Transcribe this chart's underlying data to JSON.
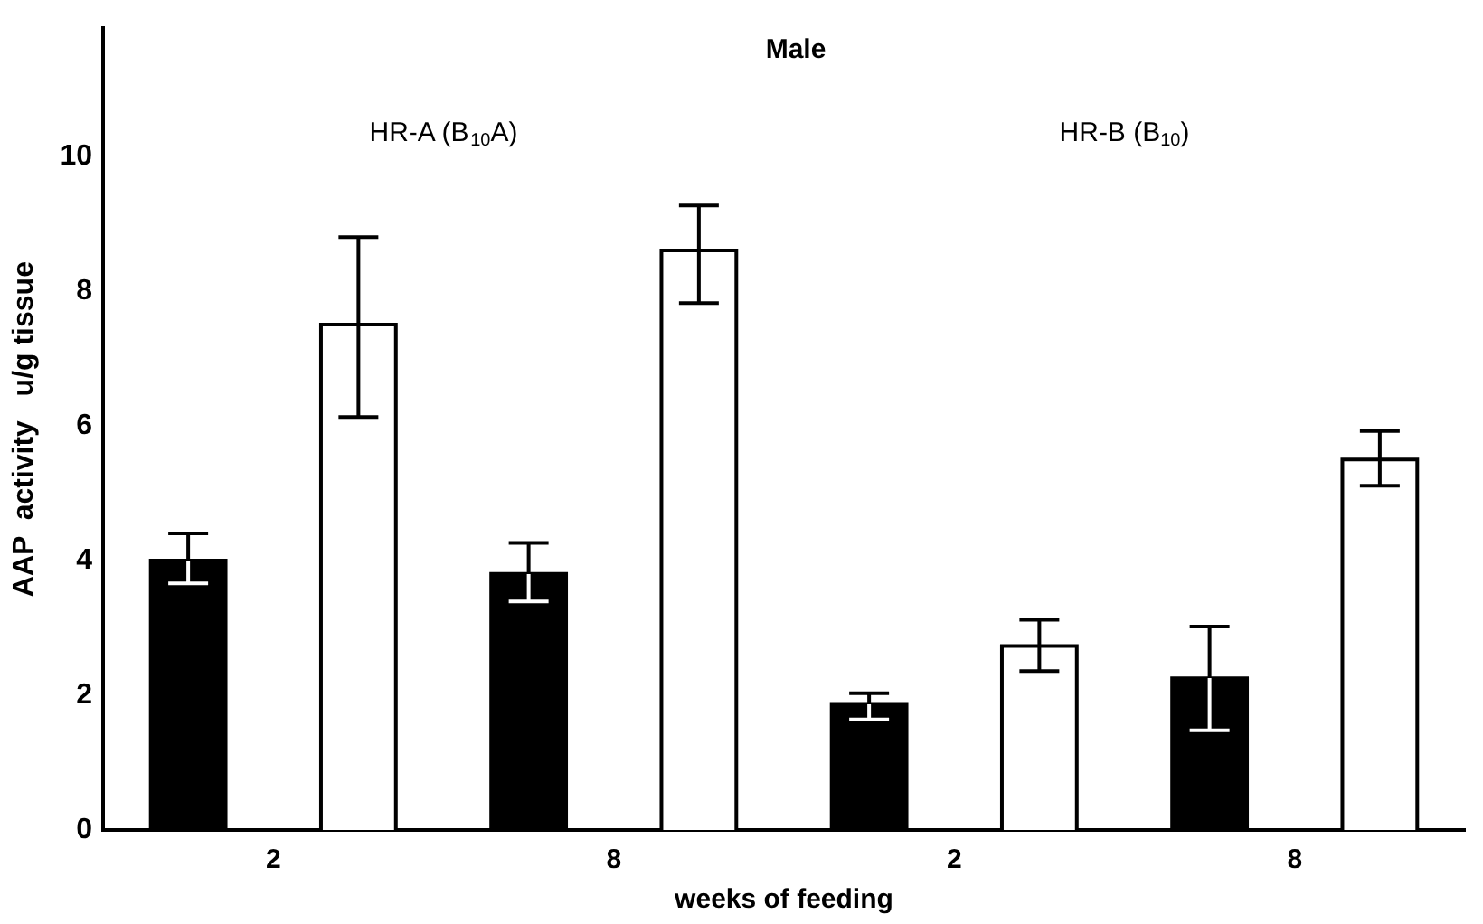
{
  "chart_data": {
    "type": "bar",
    "title": "Male",
    "xlabel": "weeks of feeding",
    "ylabel": "AAP  activity   u/g tissue",
    "categories": [
      "2",
      "8",
      "2",
      "8"
    ],
    "series": [
      {
        "color": "#000000",
        "values": [
          4.0,
          3.8,
          1.86,
          2.25
        ],
        "errors": [
          [
            3.66,
            4.4
          ],
          [
            3.39,
            4.26
          ],
          [
            1.64,
            2.03
          ],
          [
            1.48,
            3.02
          ]
        ]
      },
      {
        "color": "#ffffff",
        "values": [
          7.5,
          8.6,
          2.73,
          5.5
        ],
        "errors": [
          [
            6.13,
            8.8
          ],
          [
            7.82,
            9.27
          ],
          [
            2.36,
            3.12
          ],
          [
            5.11,
            5.92
          ]
        ]
      }
    ],
    "annotations": [
      "HR-A (B$_{10}$A)",
      "HR-B (B$_{10}$)"
    ],
    "ylim": [
      0,
      11.9
    ],
    "yticks": [
      0,
      2,
      4,
      6,
      8,
      10
    ],
    "grid": false,
    "legend": false
  }
}
